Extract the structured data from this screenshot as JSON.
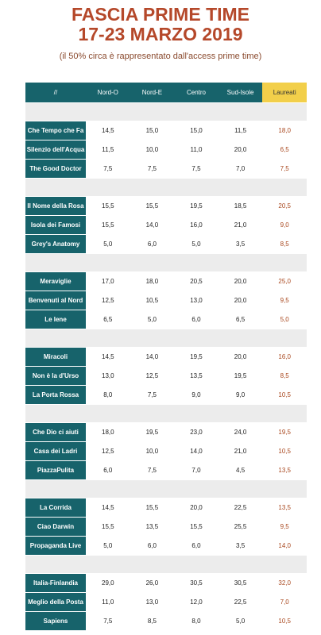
{
  "title_line1": "FASCIA PRIME TIME",
  "title_line2": "17-23 MARZO 2019",
  "subtitle": "(il 50% circa è rappresentato dall'access prime time)",
  "headers": [
    "//",
    "Nord-O",
    "Nord-E",
    "Centro",
    "Sud-Isole",
    "Laureati"
  ],
  "groups": [
    [
      {
        "name": "Che Tempo che Fa",
        "v": [
          "14,5",
          "15,0",
          "15,0",
          "11,5",
          "18,0"
        ]
      },
      {
        "name": "Silenzio dell'Acqua",
        "v": [
          "11,5",
          "10,0",
          "11,0",
          "20,0",
          "6,5"
        ]
      },
      {
        "name": "The Good Doctor",
        "v": [
          "7,5",
          "7,5",
          "7,5",
          "7,0",
          "7,5"
        ]
      }
    ],
    [
      {
        "name": "Il Nome della Rosa",
        "v": [
          "15,5",
          "15,5",
          "19,5",
          "18,5",
          "20,5"
        ]
      },
      {
        "name": "Isola dei Famosi",
        "v": [
          "15,5",
          "14,0",
          "16,0",
          "21,0",
          "9,0"
        ]
      },
      {
        "name": "Grey's Anatomy",
        "v": [
          "5,0",
          "6,0",
          "5,0",
          "3,5",
          "8,5"
        ]
      }
    ],
    [
      {
        "name": "Meraviglie",
        "v": [
          "17,0",
          "18,0",
          "20,5",
          "20,0",
          "25,0"
        ]
      },
      {
        "name": "Benvenuti al Nord",
        "v": [
          "12,5",
          "10,5",
          "13,0",
          "20,0",
          "9,5"
        ]
      },
      {
        "name": "Le Iene",
        "v": [
          "6,5",
          "5,0",
          "6,0",
          "6,5",
          "5,0"
        ]
      }
    ],
    [
      {
        "name": "Miracoli",
        "v": [
          "14,5",
          "14,0",
          "19,5",
          "20,0",
          "16,0"
        ]
      },
      {
        "name": "Non è la d'Urso",
        "v": [
          "13,0",
          "12,5",
          "13,5",
          "19,5",
          "8,5"
        ]
      },
      {
        "name": "La Porta Rossa",
        "v": [
          "8,0",
          "7,5",
          "9,0",
          "9,0",
          "10,5"
        ]
      }
    ],
    [
      {
        "name": "Che Dio ci aiuti",
        "v": [
          "18,0",
          "19,5",
          "23,0",
          "24,0",
          "19,5"
        ]
      },
      {
        "name": "Casa dei Ladri",
        "v": [
          "12,5",
          "10,0",
          "14,0",
          "21,0",
          "10,5"
        ]
      },
      {
        "name": "PiazzaPulita",
        "v": [
          "6,0",
          "7,5",
          "7,0",
          "4,5",
          "13,5"
        ]
      }
    ],
    [
      {
        "name": "La Corrida",
        "v": [
          "14,5",
          "15,5",
          "20,0",
          "22,5",
          "13,5"
        ]
      },
      {
        "name": "Ciao Darwin",
        "v": [
          "15,5",
          "13,5",
          "15,5",
          "25,5",
          "9,5"
        ]
      },
      {
        "name": "Propaganda Live",
        "v": [
          "5,0",
          "6,0",
          "6,0",
          "3,5",
          "14,0"
        ]
      }
    ],
    [
      {
        "name": "Italia-Finlandia",
        "v": [
          "29,0",
          "26,0",
          "30,5",
          "30,5",
          "32,0"
        ]
      },
      {
        "name": "Meglio della Posta",
        "v": [
          "11,0",
          "13,0",
          "12,0",
          "22,5",
          "7,0"
        ]
      },
      {
        "name": "Sapiens",
        "v": [
          "7,5",
          "8,5",
          "8,0",
          "5,0",
          "10,5"
        ]
      }
    ]
  ]
}
